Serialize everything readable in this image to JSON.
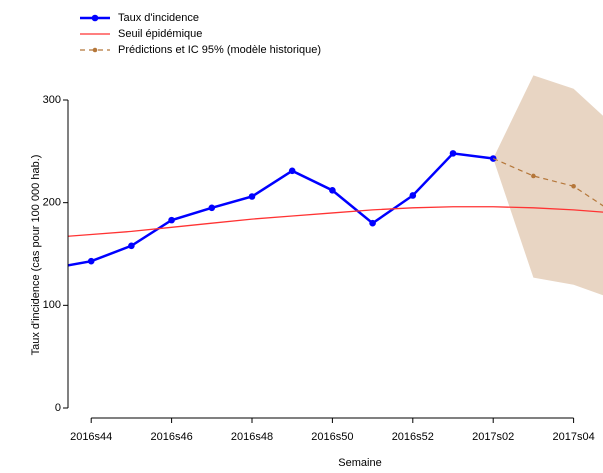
{
  "chart_data": {
    "type": "line",
    "x_label": "Semaine",
    "y_label": "Taux d'incidence (cas pour 100 000 hab.)",
    "categories": [
      null,
      "2016s44",
      null,
      "2016s46",
      null,
      "2016s48",
      null,
      "2016s50",
      null,
      "2016s52",
      null,
      "2017s02",
      null,
      "2017s04",
      null
    ],
    "ylim": [
      0,
      300
    ],
    "yticks": [
      0,
      100,
      200,
      300
    ],
    "series": [
      {
        "name": "Taux d'incidence",
        "color": "#0000ff",
        "values": [
          136,
          143,
          158,
          183,
          195,
          206,
          231,
          212,
          180,
          207,
          248,
          243,
          null,
          null,
          null
        ]
      },
      {
        "name": "Seuil épidémique",
        "color": "#ff3333",
        "values": [
          166,
          169,
          172,
          176,
          180,
          184,
          187,
          190,
          193,
          195,
          196,
          196,
          195,
          193,
          190
        ]
      },
      {
        "name": "Prédictions et IC 95% (modèle historique)",
        "color": "#b5773a",
        "band_color": "#e8d5c3",
        "values": [
          null,
          null,
          null,
          null,
          null,
          null,
          null,
          null,
          null,
          null,
          null,
          243,
          226,
          216,
          190
        ],
        "lower": [
          null,
          null,
          null,
          null,
          null,
          null,
          null,
          null,
          null,
          null,
          null,
          243,
          127,
          120,
          106
        ],
        "upper": [
          null,
          null,
          null,
          null,
          null,
          null,
          null,
          null,
          null,
          null,
          null,
          243,
          324,
          311,
          275
        ]
      }
    ]
  }
}
